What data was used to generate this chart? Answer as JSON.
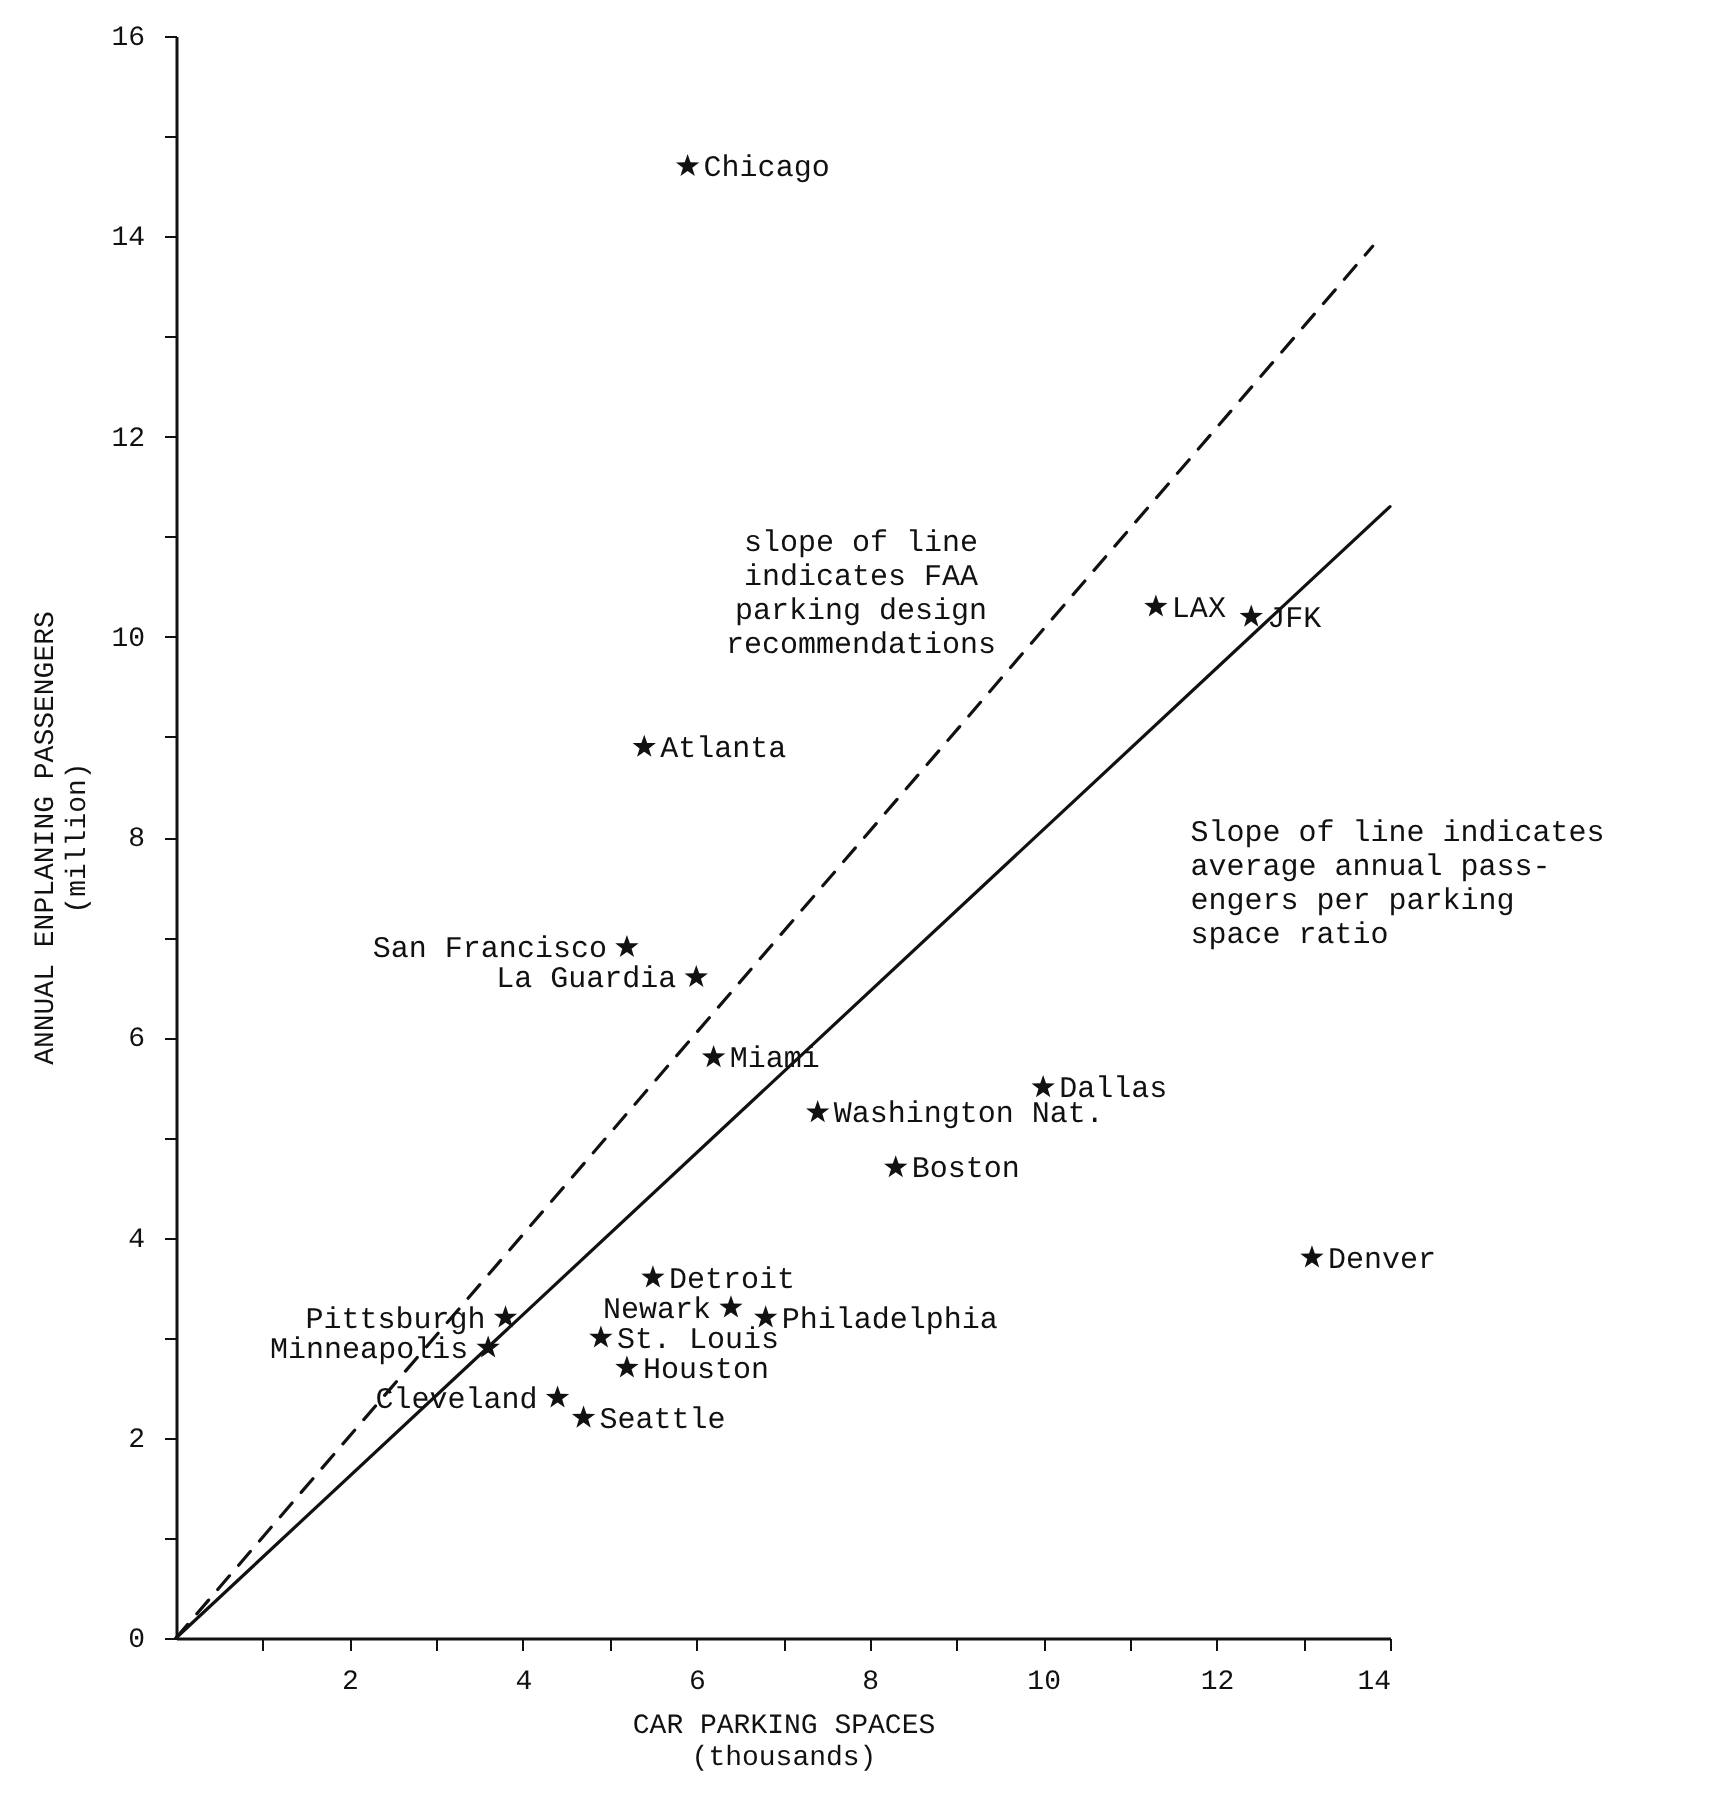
{
  "chart_data": {
    "type": "scatter",
    "xlabel": "CAR PARKING SPACES\n(thousands)",
    "ylabel": "ANNUAL ENPLANING PASSENGERS\n(million)",
    "xlim": [
      0,
      14
    ],
    "ylim": [
      0,
      16
    ],
    "xticks": [
      {
        "value": 1,
        "label": null
      },
      2,
      {
        "value": 3,
        "label": null
      },
      4,
      {
        "value": 5,
        "label": null
      },
      6,
      {
        "value": 7,
        "label": null
      },
      8,
      {
        "value": 9,
        "label": null
      },
      10,
      {
        "value": 11,
        "label": null
      },
      12,
      {
        "value": 13,
        "label": null
      },
      14
    ],
    "yticks": [
      0,
      {
        "value": 1,
        "label": null
      },
      2,
      {
        "value": 3,
        "label": null
      },
      4,
      {
        "value": 5,
        "label": null
      },
      6,
      {
        "value": 7,
        "label": null
      },
      8,
      {
        "value": 9,
        "label": null
      },
      10,
      {
        "value": 11,
        "label": null
      },
      12,
      {
        "value": 13,
        "label": null
      },
      14,
      {
        "value": 15,
        "label": null
      },
      16
    ],
    "grid": false,
    "marker": "star",
    "series": [
      {
        "color": "#111111",
        "x": [
          5.9,
          5.4,
          11.3,
          12.4,
          10.0,
          7.4,
          8.3,
          13.1,
          5.2,
          6.0,
          6.2,
          5.5,
          6.4,
          6.8,
          4.9,
          5.2,
          3.8,
          3.6,
          4.4,
          4.7
        ],
        "values": [
          14.7,
          8.9,
          10.3,
          10.2,
          5.5,
          5.25,
          4.7,
          3.8,
          6.9,
          6.6,
          5.8,
          3.6,
          3.3,
          3.2,
          3.0,
          2.7,
          3.2,
          2.9,
          2.4,
          2.2
        ]
      },
      {
        "type": "line",
        "color": "#111111",
        "marker": "none",
        "line_style": "solid",
        "x": [
          0,
          14
        ],
        "values": [
          0,
          11.3
        ]
      },
      {
        "type": "line",
        "color": "#111111",
        "marker": "none",
        "line_style": "dashed",
        "x": [
          0,
          13.8
        ],
        "values": [
          0,
          13.9
        ]
      }
    ],
    "annotations": [
      {
        "text": "Chicago",
        "x": 5.9,
        "y": 14.7
      },
      {
        "text": "Atlanta",
        "x": 5.4,
        "y": 8.9
      },
      {
        "text": "LAX",
        "x": 11.3,
        "y": 10.3
      },
      {
        "text": "JFK",
        "x": 12.4,
        "y": 10.2
      },
      {
        "text": "Dallas",
        "x": 10.0,
        "y": 5.5
      },
      {
        "text": "Washington Nat.",
        "x": 7.4,
        "y": 5.25
      },
      {
        "text": "Boston",
        "x": 8.3,
        "y": 4.7
      },
      {
        "text": "Denver",
        "x": 13.1,
        "y": 3.8
      },
      {
        "text": "San Francisco",
        "x": 5.2,
        "y": 6.9
      },
      {
        "text": "La Guardia",
        "x": 6.0,
        "y": 6.6
      },
      {
        "text": "Miami",
        "x": 6.2,
        "y": 5.8
      },
      {
        "text": "Detroit",
        "x": 5.5,
        "y": 3.6
      },
      {
        "text": "Newark",
        "x": 6.4,
        "y": 3.3
      },
      {
        "text": "Philadelphia",
        "x": 6.8,
        "y": 3.2
      },
      {
        "text": "St. Louis",
        "x": 4.9,
        "y": 3.0
      },
      {
        "text": "Houston",
        "x": 5.2,
        "y": 2.7
      },
      {
        "text": "Pittsburgh",
        "x": 3.8,
        "y": 3.2
      },
      {
        "text": "Minneapolis",
        "x": 3.6,
        "y": 2.9
      },
      {
        "text": "Cleveland",
        "x": 4.4,
        "y": 2.4
      },
      {
        "text": "Seattle",
        "x": 4.7,
        "y": 2.2
      },
      "slope of line\nindicates FAA\nparking design\nrecommendations",
      "Slope of line indicates\naverage annual pass-\nengers per parking\nspace ratio"
    ]
  }
}
